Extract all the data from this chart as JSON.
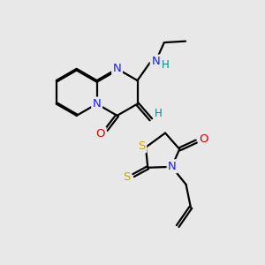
{
  "bg": "#e8e8e8",
  "C": "#000000",
  "N": "#1a1aff",
  "O": "#dd0000",
  "S": "#ccaa00",
  "H": "#008888",
  "lw": 1.6,
  "off": 0.05,
  "fs": 9.5
}
